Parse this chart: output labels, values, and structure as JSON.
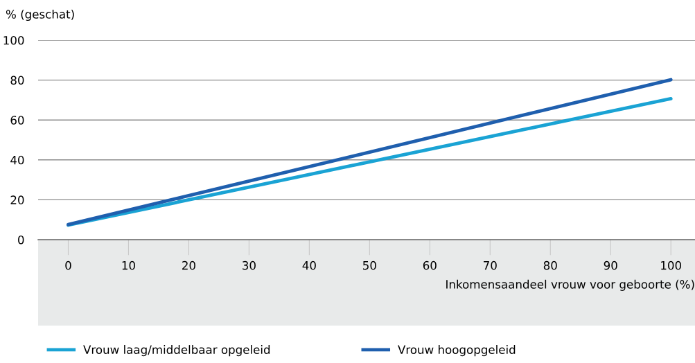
{
  "chart_data": {
    "type": "line",
    "ylabel": "% (geschat)",
    "xlabel": "Inkomensaandeel vrouw voor geboorte (%)",
    "x": [
      0,
      100
    ],
    "series": [
      {
        "name": "Vrouw laag/middelbaar opgeleid",
        "color": "#1aa3d4",
        "values": [
          7.3,
          70.7
        ]
      },
      {
        "name": "Vrouw hoogopgeleid",
        "color": "#1f5fae",
        "values": [
          7.6,
          80.2
        ]
      }
    ],
    "xlim": [
      -5,
      104
    ],
    "xticks": [
      0,
      10,
      20,
      30,
      40,
      50,
      60,
      70,
      80,
      90,
      100
    ],
    "ylim": [
      0,
      100
    ],
    "yticks": [
      0,
      20,
      40,
      60,
      80,
      100
    ],
    "grid": "y",
    "legend": "bottom",
    "marker": "none",
    "line_style": "solid"
  }
}
